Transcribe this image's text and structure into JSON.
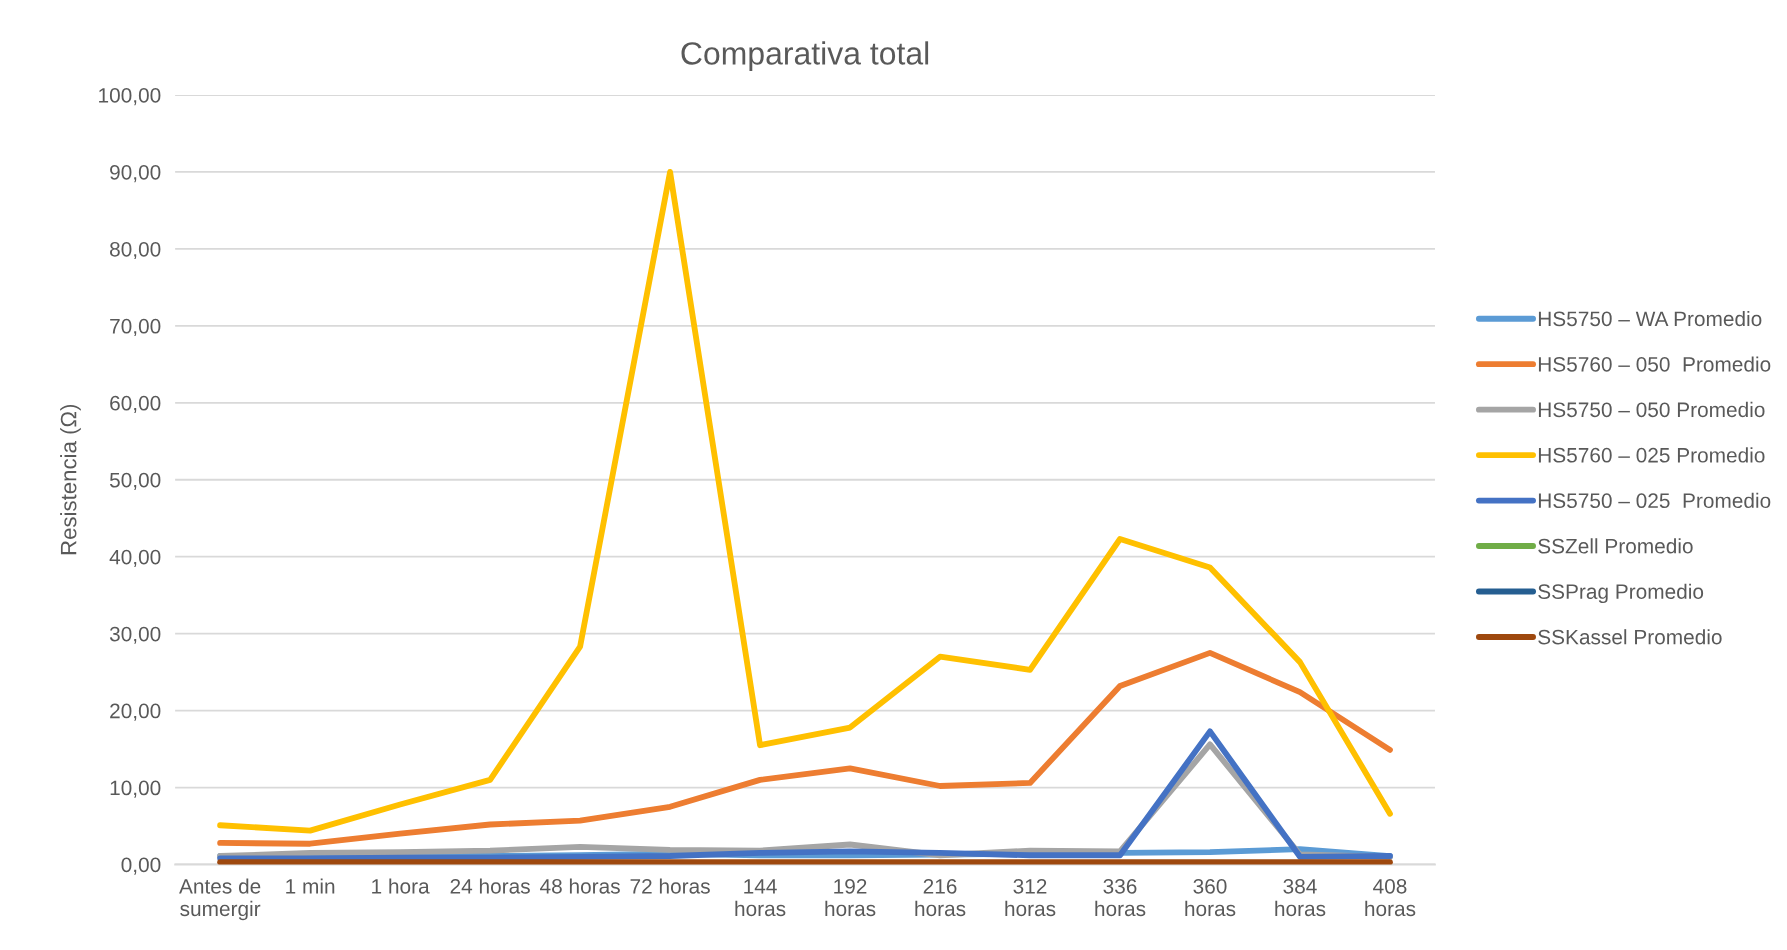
{
  "chart_data": {
    "type": "line",
    "title": "Comparativa total",
    "ylabel": "Resistencia (Ω)",
    "categories": [
      "Antes de\nsumergir",
      "1 min",
      "1 hora",
      "24 horas",
      "48 horas",
      "72 horas",
      "144\nhoras",
      "192\nhoras",
      "216\nhoras",
      "312\nhoras",
      "336\nhoras",
      "360\nhoras",
      "384\nhoras",
      "408\nhoras"
    ],
    "series": [
      {
        "name": "HS5750 – WA Promedio",
        "color": "#5b9bd5",
        "values": [
          1.1,
          1.1,
          1.1,
          1.1,
          1.2,
          1.4,
          1.2,
          1.2,
          1.3,
          1.4,
          1.5,
          1.6,
          2.0,
          1.1
        ]
      },
      {
        "name": "HS5760 – 050  Promedio",
        "color": "#ed7d31",
        "values": [
          2.8,
          2.7,
          4.0,
          5.2,
          5.7,
          7.5,
          11.0,
          12.5,
          10.2,
          10.6,
          23.2,
          27.5,
          22.4,
          14.9
        ]
      },
      {
        "name": "HS5750 – 050 Promedio",
        "color": "#a5a5a5",
        "values": [
          1.1,
          1.5,
          1.6,
          1.8,
          2.3,
          1.9,
          1.8,
          2.6,
          1.2,
          1.8,
          1.7,
          15.6,
          1.3,
          1.0
        ]
      },
      {
        "name": "HS5760 – 025 Promedio",
        "color": "#ffc000",
        "values": [
          5.1,
          4.4,
          7.8,
          11.0,
          28.3,
          90.0,
          15.5,
          17.8,
          27.0,
          25.3,
          42.3,
          38.6,
          26.3,
          6.6
        ]
      },
      {
        "name": "HS5750 – 025  Promedio",
        "color": "#4472c4",
        "values": [
          0.8,
          0.8,
          0.9,
          0.9,
          1.0,
          1.1,
          1.5,
          1.7,
          1.5,
          1.2,
          1.2,
          17.3,
          1.0,
          1.1
        ]
      },
      {
        "name": "SSZell Promedio",
        "color": "#70ad47",
        "values": [
          null,
          null,
          null,
          null,
          null,
          null,
          null,
          null,
          null,
          null,
          null,
          null,
          null,
          null
        ]
      },
      {
        "name": "SSPrag Promedio",
        "color": "#255e91",
        "values": [
          null,
          null,
          null,
          null,
          null,
          null,
          null,
          null,
          null,
          null,
          null,
          null,
          null,
          null
        ]
      },
      {
        "name": "SSKassel Promedio",
        "color": "#9e480e",
        "values": [
          0.3,
          0.3,
          0.3,
          0.3,
          0.3,
          0.3,
          0.3,
          0.3,
          0.3,
          0.3,
          0.3,
          0.3,
          0.3,
          0.3
        ]
      }
    ],
    "ylim": [
      0,
      100
    ],
    "yticks": [
      {
        "value": 0,
        "label": "0,00"
      },
      {
        "value": 10,
        "label": "10,00"
      },
      {
        "value": 20,
        "label": "20,00"
      },
      {
        "value": 30,
        "label": "30,00"
      },
      {
        "value": 40,
        "label": "40,00"
      },
      {
        "value": 50,
        "label": "50,00"
      },
      {
        "value": 60,
        "label": "60,00"
      },
      {
        "value": 70,
        "label": "70,00"
      },
      {
        "value": 80,
        "label": "80,00"
      },
      {
        "value": 90,
        "label": "90,00"
      },
      {
        "value": 100,
        "label": "100,00"
      }
    ],
    "grid": "y",
    "legend": "right",
    "marker": "none",
    "line_style": "solid"
  }
}
